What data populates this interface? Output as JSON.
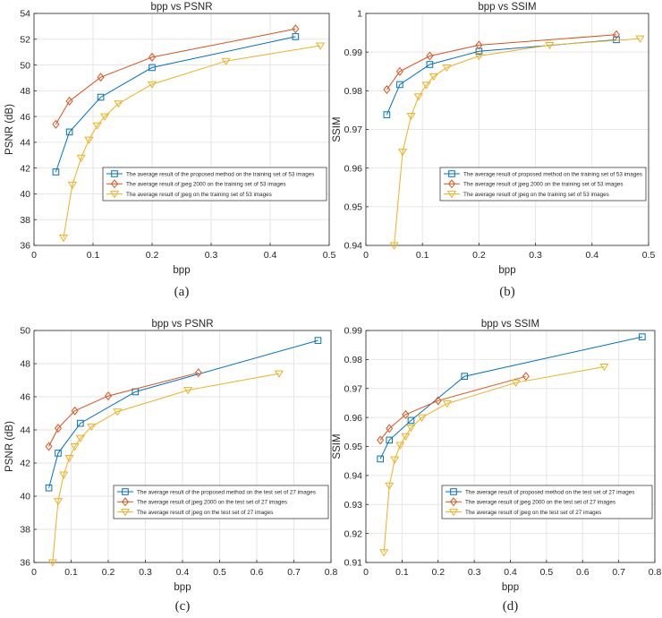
{
  "colors": {
    "proposed": "#0072BD",
    "jpeg2000": "#D95319",
    "jpeg": "#EDB120",
    "grid": "#e6e6e6",
    "axis": "#262626"
  },
  "chart_data": [
    {
      "type": "line",
      "title": "bpp vs PSNR",
      "xlabel": "bpp",
      "ylabel": "PSNR (dB)",
      "xlim": [
        0,
        0.5
      ],
      "ylim": [
        36,
        54
      ],
      "xticks": [
        "0",
        "0.1",
        "0.2",
        "0.3",
        "0.4",
        "0.5"
      ],
      "yticks": [
        "36",
        "38",
        "40",
        "42",
        "44",
        "46",
        "48",
        "50",
        "52",
        "54"
      ],
      "grid": true,
      "legend_position": "lower-right",
      "caption": "(a)",
      "series": [
        {
          "name": "The average result of the proposed method on the training set of 53 images",
          "marker": "square",
          "color_key": "proposed",
          "x": [
            0.037,
            0.06,
            0.113,
            0.2,
            0.443
          ],
          "y": [
            41.7,
            44.8,
            47.5,
            49.8,
            52.2
          ]
        },
        {
          "name": "The average result of jpeg 2000 on the training set of 53 images",
          "marker": "diamond",
          "color_key": "jpeg2000",
          "x": [
            0.037,
            0.06,
            0.113,
            0.2,
            0.443
          ],
          "y": [
            45.4,
            47.2,
            49.05,
            50.6,
            52.8
          ]
        },
        {
          "name": "The average result of jpeg on the training set of 53 images",
          "marker": "triangle-down",
          "color_key": "jpeg",
          "x": [
            0.05,
            0.065,
            0.08,
            0.093,
            0.107,
            0.12,
            0.143,
            0.2,
            0.325,
            0.485
          ],
          "y": [
            36.6,
            40.7,
            42.8,
            44.2,
            45.3,
            46.0,
            47.0,
            48.5,
            50.3,
            51.5
          ]
        }
      ]
    },
    {
      "type": "line",
      "title": "bpp vs SSIM",
      "xlabel": "bpp",
      "ylabel": "SSIM",
      "xlim": [
        0,
        0.5
      ],
      "ylim": [
        0.94,
        1.0
      ],
      "xticks": [
        "0",
        "0.1",
        "0.2",
        "0.3",
        "0.4",
        "0.5"
      ],
      "yticks": [
        "0.94",
        "0.95",
        "0.96",
        "0.97",
        "0.98",
        "0.99",
        "1"
      ],
      "grid": true,
      "legend_position": "lower-right",
      "caption": "(b)",
      "series": [
        {
          "name": "The average result of proposed method on the training set of 53 images",
          "marker": "square",
          "color_key": "proposed",
          "x": [
            0.037,
            0.06,
            0.113,
            0.2,
            0.443
          ],
          "y": [
            0.9738,
            0.9816,
            0.9868,
            0.9902,
            0.9932
          ]
        },
        {
          "name": "The average result of jpeg 2000 on the training set of 53 images",
          "marker": "diamond",
          "color_key": "jpeg2000",
          "x": [
            0.037,
            0.06,
            0.113,
            0.2,
            0.443
          ],
          "y": [
            0.9803,
            0.985,
            0.989,
            0.9918,
            0.9945
          ]
        },
        {
          "name": "The average result of jpeg on the training set of 53 images",
          "marker": "triangle-down",
          "color_key": "jpeg",
          "x": [
            0.05,
            0.065,
            0.08,
            0.093,
            0.107,
            0.12,
            0.143,
            0.2,
            0.325,
            0.485
          ],
          "y": [
            0.94,
            0.9642,
            0.9735,
            0.9785,
            0.9815,
            0.9837,
            0.986,
            0.989,
            0.9918,
            0.9935
          ]
        }
      ]
    },
    {
      "type": "line",
      "title": "bpp vs PSNR",
      "xlabel": "bpp",
      "ylabel": "PSNR (dB)",
      "xlim": [
        0,
        0.8
      ],
      "ylim": [
        36,
        50
      ],
      "xticks": [
        "0",
        "0.1",
        "0.2",
        "0.3",
        "0.4",
        "0.5",
        "0.6",
        "0.7",
        "0.8"
      ],
      "yticks": [
        "36",
        "38",
        "40",
        "42",
        "44",
        "46",
        "48",
        "50"
      ],
      "grid": true,
      "legend_position": "lower-right",
      "caption": "(c)",
      "series": [
        {
          "name": "The average result of the proposed method on the test set of 27 images",
          "marker": "square",
          "color_key": "proposed",
          "x": [
            0.04,
            0.065,
            0.125,
            0.273,
            0.765
          ],
          "y": [
            40.5,
            42.6,
            44.4,
            46.3,
            49.4
          ]
        },
        {
          "name": "The average result of jpeg 2000 on the test set of 27 images",
          "marker": "diamond",
          "color_key": "jpeg2000",
          "x": [
            0.04,
            0.065,
            0.11,
            0.2,
            0.443
          ],
          "y": [
            43.0,
            44.1,
            45.15,
            46.05,
            47.45
          ]
        },
        {
          "name": "The average result of jpeg on the test set of 27 images",
          "marker": "triangle-down",
          "color_key": "jpeg",
          "x": [
            0.05,
            0.065,
            0.08,
            0.095,
            0.11,
            0.125,
            0.155,
            0.225,
            0.415,
            0.66
          ],
          "y": [
            36.0,
            39.7,
            41.3,
            42.3,
            43.0,
            43.5,
            44.2,
            45.1,
            46.4,
            47.4
          ]
        }
      ]
    },
    {
      "type": "line",
      "title": "bpp vs SSIM",
      "xlabel": "bpp",
      "ylabel": "SSIM",
      "xlim": [
        0,
        0.8
      ],
      "ylim": [
        0.91,
        0.99
      ],
      "xticks": [
        "0",
        "0.1",
        "0.2",
        "0.3",
        "0.4",
        "0.5",
        "0.6",
        "0.7",
        "0.8"
      ],
      "yticks": [
        "0.91",
        "0.92",
        "0.93",
        "0.94",
        "0.95",
        "0.96",
        "0.97",
        "0.98",
        "0.99"
      ],
      "grid": true,
      "legend_position": "lower-right",
      "caption": "(d)",
      "series": [
        {
          "name": "The average result of proposed method on the test set of 27 images",
          "marker": "square",
          "color_key": "proposed",
          "x": [
            0.04,
            0.065,
            0.125,
            0.273,
            0.765
          ],
          "y": [
            0.9457,
            0.9522,
            0.959,
            0.9742,
            0.9878
          ]
        },
        {
          "name": "The average result of jpeg 2000 on the test set of 27 images",
          "marker": "diamond",
          "color_key": "jpeg2000",
          "x": [
            0.04,
            0.065,
            0.11,
            0.2,
            0.443
          ],
          "y": [
            0.9522,
            0.9562,
            0.961,
            0.9658,
            0.9742
          ]
        },
        {
          "name": "The average result of jpeg on the test set of 27 images",
          "marker": "triangle-down",
          "color_key": "jpeg",
          "x": [
            0.05,
            0.065,
            0.08,
            0.095,
            0.11,
            0.125,
            0.155,
            0.225,
            0.415,
            0.66
          ],
          "y": [
            0.9135,
            0.9365,
            0.9455,
            0.9505,
            0.9535,
            0.9565,
            0.96,
            0.9648,
            0.972,
            0.9775
          ]
        }
      ]
    }
  ]
}
